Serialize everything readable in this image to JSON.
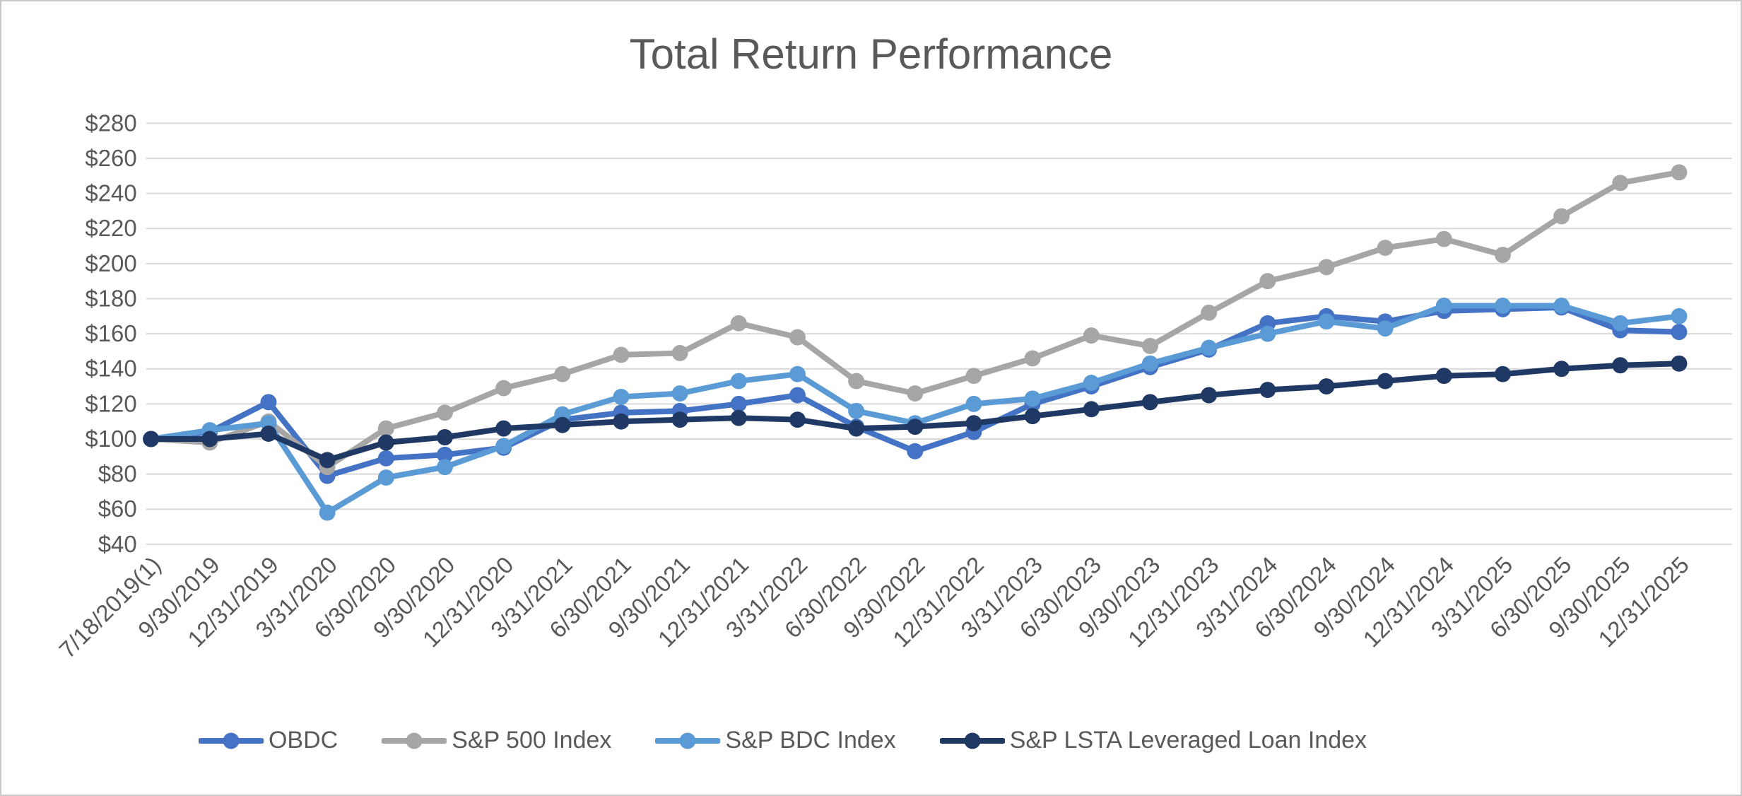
{
  "title": "Total Return Performance",
  "chart_data": {
    "type": "line",
    "title": "Total Return Performance",
    "x_labels": [
      "7/18/2019(1)",
      "9/30/2019",
      "12/31/2019",
      "3/31/2020",
      "6/30/2020",
      "9/30/2020",
      "12/31/2020",
      "3/31/2021",
      "6/30/2021",
      "9/30/2021",
      "12/31/2021",
      "3/31/2022",
      "6/30/2022",
      "9/30/2022",
      "12/31/2022",
      "3/31/2023",
      "6/30/2023",
      "9/30/2023",
      "12/31/2023",
      "3/31/2024",
      "6/30/2024",
      "9/30/2024",
      "12/31/2024",
      "3/31/2025",
      "6/30/2025",
      "9/30/2025",
      "12/31/2025"
    ],
    "series": [
      {
        "name": "OBDC",
        "color": "#4472C4",
        "values": [
          100,
          104,
          121,
          79,
          89,
          91,
          95,
          111,
          115,
          116,
          120,
          125,
          107,
          93,
          104,
          120,
          130,
          141,
          151,
          166,
          170,
          167,
          173,
          174,
          175,
          162,
          161
        ]
      },
      {
        "name": "S&P 500 Index",
        "color": "#A6A6A6",
        "values": [
          100,
          98,
          110,
          84,
          106,
          115,
          129,
          137,
          148,
          149,
          166,
          158,
          133,
          126,
          136,
          146,
          159,
          153,
          172,
          190,
          198,
          209,
          214,
          205,
          227,
          246,
          252
        ]
      },
      {
        "name": "S&P BDC Index",
        "color": "#5B9BD5",
        "values": [
          100,
          105,
          109,
          58,
          78,
          84,
          96,
          114,
          124,
          126,
          133,
          137,
          116,
          109,
          120,
          123,
          132,
          143,
          152,
          160,
          167,
          163,
          176,
          176,
          176,
          166,
          170
        ]
      },
      {
        "name": "S&P LSTA Leveraged Loan Index",
        "color": "#1F3864",
        "values": [
          100,
          100,
          103,
          88,
          98,
          101,
          106,
          108,
          110,
          111,
          112,
          111,
          106,
          107,
          109,
          113,
          117,
          121,
          125,
          128,
          130,
          133,
          136,
          137,
          140,
          142,
          143
        ]
      }
    ],
    "y_axis": {
      "min": 40,
      "max": 280,
      "step": 20,
      "prefix": "$"
    },
    "ylim": [
      40,
      280
    ],
    "grid": true,
    "legend_position": "bottom",
    "text_color": "#595959",
    "gridline_color": "#D9D9D9",
    "background_color": "#FFFFFF"
  }
}
